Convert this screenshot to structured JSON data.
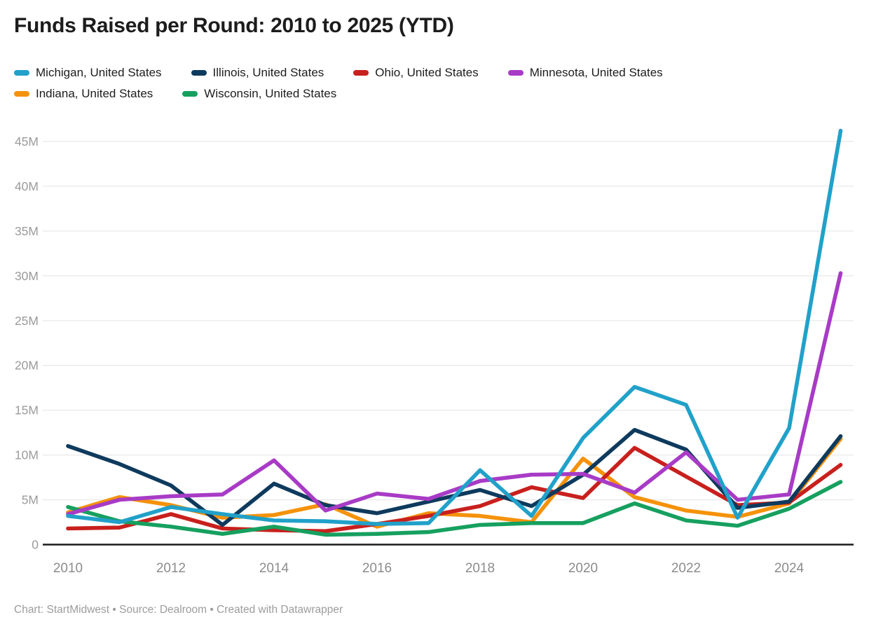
{
  "title": "Funds Raised per Round: 2010 to 2025 (YTD)",
  "footer": "Chart: StartMidwest • Source: Dealroom • Created with Datawrapper",
  "chart_data": {
    "type": "line",
    "title": "Funds Raised per Round: 2010 to 2025 (YTD)",
    "xlabel": "",
    "ylabel": "",
    "x": [
      2010,
      2011,
      2012,
      2013,
      2014,
      2015,
      2016,
      2017,
      2018,
      2019,
      2020,
      2021,
      2022,
      2023,
      2024,
      2025
    ],
    "x_ticks": [
      {
        "label": "2010",
        "year": 2010
      },
      {
        "label": "2012",
        "year": 2012
      },
      {
        "label": "2014",
        "year": 2014
      },
      {
        "label": "2016",
        "year": 2016
      },
      {
        "label": "2018",
        "year": 2018
      },
      {
        "label": "2020",
        "year": 2020
      },
      {
        "label": "2022",
        "year": 2022
      },
      {
        "label": "2024",
        "year": 2024
      }
    ],
    "y_ticks": [
      {
        "label": "0",
        "value": 0
      },
      {
        "label": "5M",
        "value": 5
      },
      {
        "label": "10M",
        "value": 10
      },
      {
        "label": "15M",
        "value": 15
      },
      {
        "label": "20M",
        "value": 20
      },
      {
        "label": "25M",
        "value": 25
      },
      {
        "label": "30M",
        "value": 30
      },
      {
        "label": "35M",
        "value": 35
      },
      {
        "label": "40M",
        "value": 40
      },
      {
        "label": "45M",
        "value": 45
      }
    ],
    "ylim": [
      0,
      46.5
    ],
    "grid": true,
    "legend_position": "top",
    "unit": "M",
    "series": [
      {
        "name": "Michigan, United States",
        "color": "#21a1c9",
        "values": [
          3.2,
          2.5,
          4.2,
          3.4,
          2.7,
          2.6,
          2.3,
          2.4,
          8.3,
          3.2,
          11.9,
          17.6,
          15.6,
          3.0,
          13.0,
          46.2
        ]
      },
      {
        "name": "Illinois, United States",
        "color": "#0e3a5d",
        "values": [
          11.0,
          9.0,
          6.6,
          2.2,
          6.8,
          4.4,
          3.5,
          4.8,
          6.1,
          4.3,
          7.8,
          12.8,
          10.6,
          4.1,
          4.8,
          12.1
        ]
      },
      {
        "name": "Ohio, United States",
        "color": "#c8201d",
        "values": [
          1.8,
          1.9,
          3.4,
          1.8,
          1.6,
          1.5,
          2.3,
          3.2,
          4.3,
          6.4,
          5.2,
          10.8,
          7.6,
          4.4,
          4.7,
          8.9
        ]
      },
      {
        "name": "Minnesota, United States",
        "color": "#a83bc6",
        "values": [
          3.4,
          5.0,
          5.4,
          5.6,
          9.4,
          3.8,
          5.7,
          5.1,
          7.1,
          7.8,
          7.9,
          5.8,
          10.3,
          5.0,
          5.6,
          30.3
        ]
      },
      {
        "name": "Indiana, United States",
        "color": "#f5920b",
        "values": [
          3.6,
          5.3,
          4.4,
          3.0,
          3.3,
          4.5,
          2.0,
          3.5,
          3.2,
          2.5,
          9.6,
          5.3,
          3.8,
          3.1,
          4.6,
          11.8
        ]
      },
      {
        "name": "Wisconsin, United States",
        "color": "#16a05f",
        "values": [
          4.2,
          2.6,
          2.0,
          1.2,
          2.0,
          1.1,
          1.2,
          1.4,
          2.2,
          2.4,
          2.4,
          4.6,
          2.7,
          2.1,
          4.0,
          7.0
        ]
      }
    ],
    "draw_order": [
      4,
      2,
      1,
      5,
      3,
      0
    ],
    "colors": {
      "grid": "#e9e9e9",
      "baseline": "#1a1a1a",
      "y_tick_text": "#9b9b9b",
      "x_tick_text": "#8c8c8c"
    }
  }
}
